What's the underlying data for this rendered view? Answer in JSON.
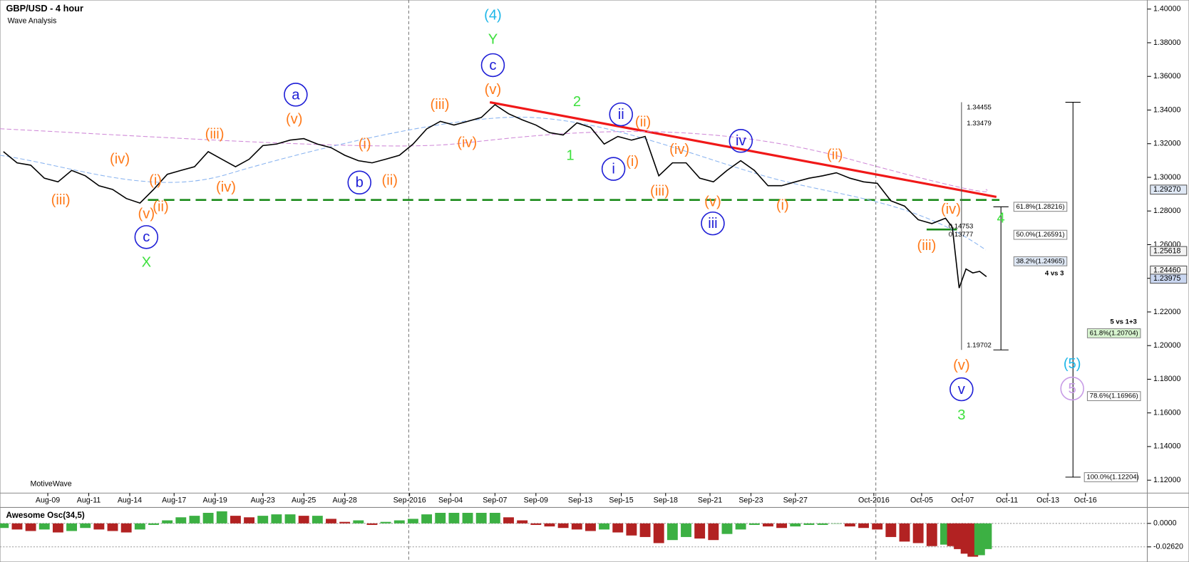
{
  "chart_data": [
    {
      "type": "line",
      "title": "GBP/USD - 4 hour",
      "subtitle": "Wave Analysis",
      "footer": "MotiveWave",
      "color": "#000000",
      "x": [
        1,
        5,
        9,
        13,
        17,
        21,
        25,
        29,
        33,
        37,
        41,
        45,
        49,
        53,
        57,
        61,
        65,
        69,
        73,
        77,
        81,
        85,
        89,
        93,
        97,
        101,
        105,
        109,
        113,
        117,
        121,
        125,
        129,
        133,
        137,
        141,
        145,
        149,
        153,
        157,
        161,
        165,
        169,
        173,
        177,
        181,
        185,
        189,
        193,
        197,
        201,
        205,
        209,
        213,
        217,
        221,
        225,
        229,
        233,
        237,
        241,
        245,
        249,
        253,
        257,
        261,
        265,
        269,
        273,
        277,
        279,
        281,
        283,
        285,
        287,
        289
      ],
      "values": [
        1.3153,
        1.3086,
        1.3072,
        1.2995,
        1.2973,
        1.3041,
        1.3009,
        1.295,
        1.2928,
        1.2874,
        1.2847,
        1.2928,
        1.3018,
        1.3041,
        1.3063,
        1.3153,
        1.3108,
        1.3063,
        1.3108,
        1.3189,
        1.3198,
        1.3221,
        1.323,
        1.3198,
        1.3176,
        1.3131,
        1.3099,
        1.3086,
        1.3108,
        1.3131,
        1.3198,
        1.3288,
        1.3333,
        1.3311,
        1.3333,
        1.3356,
        1.3432,
        1.3378,
        1.3342,
        1.3311,
        1.3266,
        1.3252,
        1.3324,
        1.3297,
        1.3198,
        1.3243,
        1.3221,
        1.3243,
        1.3009,
        1.3086,
        1.3086,
        1.2995,
        1.2973,
        1.3041,
        1.3099,
        1.3041,
        1.295,
        1.295,
        1.2973,
        1.2995,
        1.3009,
        1.3027,
        1.2995,
        1.2973,
        1.2964,
        1.286,
        1.2829,
        1.2748,
        1.2725,
        1.2757,
        1.2703,
        1.2342,
        1.2455,
        1.2432,
        1.2441,
        1.241
      ],
      "xlim": [
        0,
        335
      ],
      "ylim": [
        1.1128,
        1.4045
      ],
      "xticks": [
        {
          "value": 14,
          "label": "Aug-09"
        },
        {
          "value": 26,
          "label": "Aug-11"
        },
        {
          "value": 38,
          "label": "Aug-14"
        },
        {
          "value": 51,
          "label": "Aug-17"
        },
        {
          "value": 63,
          "label": "Aug-19"
        },
        {
          "value": 77,
          "label": "Aug-23"
        },
        {
          "value": 89,
          "label": "Aug-25"
        },
        {
          "value": 101,
          "label": "Aug-28"
        },
        {
          "value": 120,
          "label": "Sep-2016"
        },
        {
          "value": 132,
          "label": "Sep-04"
        },
        {
          "value": 145,
          "label": "Sep-07"
        },
        {
          "value": 157,
          "label": "Sep-09"
        },
        {
          "value": 170,
          "label": "Sep-13"
        },
        {
          "value": 182,
          "label": "Sep-15"
        },
        {
          "value": 195,
          "label": "Sep-18"
        },
        {
          "value": 208,
          "label": "Sep-21"
        },
        {
          "value": 220,
          "label": "Sep-23"
        },
        {
          "value": 233,
          "label": "Sep-27"
        },
        {
          "value": 256,
          "label": "Oct-2016"
        },
        {
          "value": 270,
          "label": "Oct-05"
        },
        {
          "value": 282,
          "label": "Oct-07"
        },
        {
          "value": 295,
          "label": "Oct-11"
        },
        {
          "value": 307,
          "label": "Oct-13"
        },
        {
          "value": 318,
          "label": "Oct-16"
        }
      ],
      "yticks": [
        {
          "value": 1.12,
          "label": "1.12000"
        },
        {
          "value": 1.14,
          "label": "1.14000"
        },
        {
          "value": 1.16,
          "label": "1.16000"
        },
        {
          "value": 1.18,
          "label": "1.18000"
        },
        {
          "value": 1.2,
          "label": "1.20000"
        },
        {
          "value": 1.22,
          "label": "1.22000"
        },
        {
          "value": 1.24,
          "label": "1.24000"
        },
        {
          "value": 1.26,
          "label": "1.26000"
        },
        {
          "value": 1.28,
          "label": "1.28000"
        },
        {
          "value": 1.3,
          "label": "1.30000"
        },
        {
          "value": 1.32,
          "label": "1.32000"
        },
        {
          "value": 1.34,
          "label": "1.34000"
        },
        {
          "value": 1.36,
          "label": "1.36000"
        },
        {
          "value": 1.38,
          "label": "1.38000"
        },
        {
          "value": 1.4,
          "label": "1.40000"
        }
      ],
      "price_markers": [
        {
          "value": 1.2927,
          "label": "1.29270"
        },
        {
          "value": 1.25618,
          "label": "1.25618"
        },
        {
          "value": 1.2446,
          "label": "1.24460"
        },
        {
          "value": 1.23975,
          "label": "1.23975"
        }
      ],
      "wave_labels": [
        "(4)",
        "Y",
        "c",
        "(v)",
        "(iii)",
        "(iv)",
        "a",
        "(v)",
        "(iii)",
        "(i)",
        "b",
        "(ii)",
        "(iv)",
        "(i)",
        "(iv)",
        "(iii)",
        "(v)",
        "(ii)",
        "c",
        "X",
        "2",
        "1",
        "ii",
        "(ii)",
        "i",
        "(i)",
        "(iv)",
        "(iii)",
        "iv",
        "(v)",
        "iii",
        "(ii)",
        "(i)",
        "(iv)",
        "(iii)",
        "4",
        "(v)",
        "v",
        "3",
        "(5)",
        "5"
      ],
      "annotations": [
        "61.8%(1.28216)",
        "50.0%(1.26591)",
        "38.2%(1.24965)",
        "4 vs 3",
        "5 vs 1+3",
        "61.8%(1.20704)",
        "78.6%(1.16966)",
        "100.0%(1.12204)",
        "1.34455",
        "1.33479",
        "1.19702",
        "0.14753",
        "0.13777"
      ]
    },
    {
      "type": "bar",
      "title": "Awesome Osc(34,5)",
      "up_color": "#3cb043",
      "down_color": "#b22222",
      "x": [
        1,
        5,
        9,
        13,
        17,
        21,
        25,
        29,
        33,
        37,
        41,
        45,
        49,
        53,
        57,
        61,
        65,
        69,
        73,
        77,
        81,
        85,
        89,
        93,
        97,
        101,
        105,
        109,
        113,
        117,
        121,
        125,
        129,
        133,
        137,
        141,
        145,
        149,
        153,
        157,
        161,
        165,
        169,
        173,
        177,
        181,
        185,
        189,
        193,
        197,
        201,
        205,
        209,
        213,
        217,
        221,
        225,
        229,
        233,
        237,
        241,
        245,
        249,
        253,
        257,
        261,
        265,
        269,
        273,
        277,
        279,
        281,
        283,
        285,
        287,
        289
      ],
      "values": [
        -0.0051,
        -0.0068,
        -0.0085,
        -0.0068,
        -0.0101,
        -0.0085,
        -0.0051,
        -0.0068,
        -0.0085,
        -0.0101,
        -0.0068,
        -0.0017,
        0.0034,
        0.0068,
        0.0085,
        0.0118,
        0.0135,
        0.0085,
        0.0068,
        0.0085,
        0.0101,
        0.0101,
        0.0085,
        0.0085,
        0.0051,
        0.0017,
        0.0034,
        -0.0017,
        0.0017,
        0.0034,
        0.0051,
        0.0101,
        0.0118,
        0.0118,
        0.0118,
        0.0118,
        0.0118,
        0.0068,
        0.0034,
        -0.0017,
        -0.0034,
        -0.0051,
        -0.0068,
        -0.0085,
        -0.0068,
        -0.0101,
        -0.0135,
        -0.0152,
        -0.022,
        -0.0186,
        -0.0152,
        -0.0169,
        -0.0186,
        -0.0118,
        -0.0068,
        -0.0017,
        -0.0034,
        -0.0051,
        -0.0034,
        -0.0017,
        -0.0017,
        0,
        -0.0034,
        -0.0051,
        -0.0068,
        -0.0152,
        -0.0203,
        -0.022,
        -0.0254,
        -0.0237,
        -0.0254,
        -0.0287,
        -0.0338,
        -0.0372,
        -0.0355,
        -0.0287
      ],
      "xlim": [
        0,
        335
      ],
      "ylim": [
        -0.0414,
        0.0161
      ],
      "yticks": [
        {
          "value": 0,
          "label": "0.0000"
        },
        {
          "value": -0.0262,
          "label": "-0.02620"
        }
      ]
    }
  ]
}
